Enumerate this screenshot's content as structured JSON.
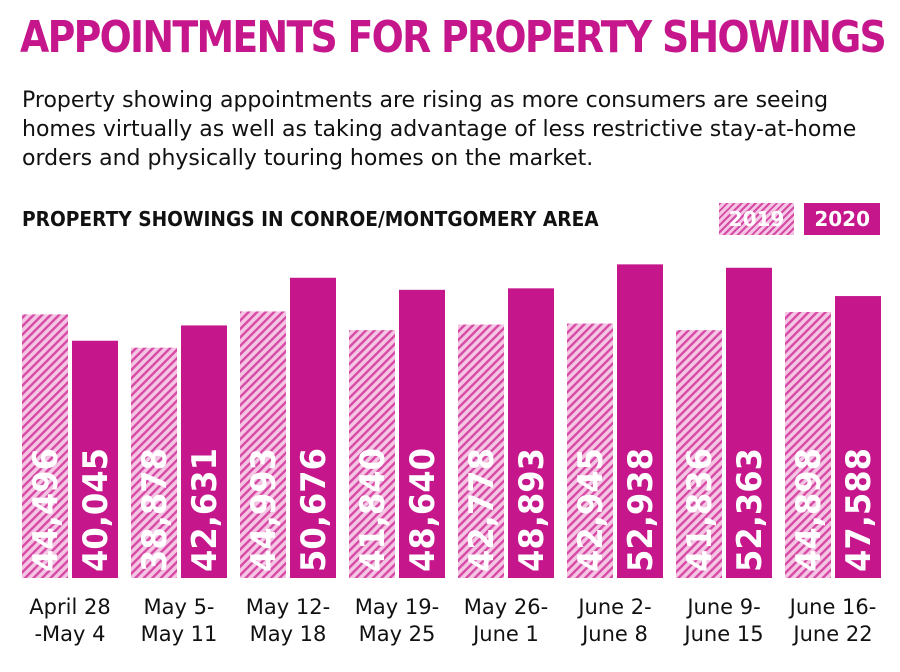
{
  "header": {
    "title": "APPOINTMENTS FOR PROPERTY SHOWINGS",
    "subtitle": "Property showing appointments are rising as more consumers are seeing homes virtually as well as taking advantage of less restrictive stay-at-home orders and physically touring homes on the market."
  },
  "colors": {
    "accent": "#c5168c",
    "hatch_dark": "#d64aa6",
    "hatch_light": "#f4c6e4"
  },
  "chart_data": {
    "type": "bar",
    "title": "PROPERTY SHOWINGS IN CONROE/MONTGOMERY AREA",
    "legend_placement": "top-right",
    "grid": false,
    "categories": [
      [
        "April 28",
        "-May 4"
      ],
      [
        "May 5-",
        "May 11"
      ],
      [
        "May 12-",
        "May 18"
      ],
      [
        "May 19-",
        "May 25"
      ],
      [
        "May 26-",
        "June 1"
      ],
      [
        "June 2-",
        "June 8"
      ],
      [
        "June 9-",
        "June 15"
      ],
      [
        "June 16-",
        "June 22"
      ]
    ],
    "series": [
      {
        "name": "2019",
        "values": [
          44496,
          38878,
          44993,
          41840,
          42778,
          42945,
          41836,
          44898
        ],
        "value_labels": [
          "44,496",
          "38,878",
          "44,993",
          "41,840",
          "42,778",
          "42,945",
          "41,836",
          "44,898"
        ]
      },
      {
        "name": "2020",
        "values": [
          40045,
          42631,
          50676,
          48640,
          48893,
          52938,
          52363,
          47588
        ],
        "value_labels": [
          "40,045",
          "42,631",
          "50,676",
          "48,640",
          "48,893",
          "52,938",
          "52,363",
          "47,588"
        ]
      }
    ],
    "ylim": [
      0,
      53000
    ],
    "xlabel": "",
    "ylabel": ""
  }
}
